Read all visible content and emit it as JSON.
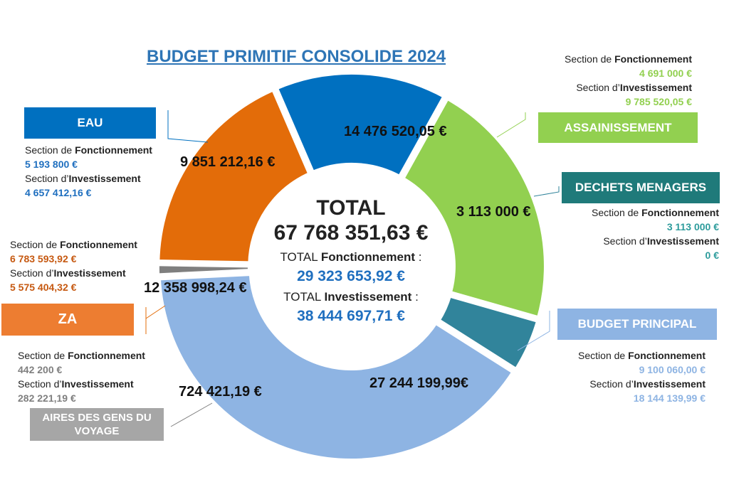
{
  "title": "BUDGET PRIMITIF CONSOLIDE 2024",
  "center": {
    "total_label": "TOTAL",
    "total_value": "67 768 351,63 €",
    "fonct_prefix": "TOTAL",
    "fonct_word": "Fonctionnement",
    "fonct_suffix": ":",
    "fonct_value": "29 323 653,92 €",
    "invest_prefix": "TOTAL",
    "invest_word": "Investissement",
    "invest_suffix": ":",
    "invest_value": "38 444 697,71 €"
  },
  "labels": {
    "fonct_pre": "Section de",
    "fonct_word": "Fonctionnement",
    "invest_pre": "Section d’",
    "invest_word": "Investissement"
  },
  "boxes": {
    "eau": "EAU",
    "assainissement": "ASSAINISSEMENT",
    "dechets": "DECHETS MENAGERS",
    "budget_principal": "BUDGET PRINCIPAL",
    "za": "ZA",
    "aires": "AIRES DES GENS DU VOYAGE"
  },
  "details": {
    "assainissement": {
      "fonct": "4 691 000 €",
      "invest": "9 785 520,05 €"
    },
    "eau": {
      "fonct": "5 193 800 €",
      "invest": "4 657 412,16 €"
    },
    "dechets": {
      "fonct": "3 113 000 €",
      "invest": "0 €"
    },
    "za": {
      "fonct": "6 783 593,92 €",
      "invest": "5 575 404,32 €"
    },
    "budget_principal": {
      "fonct": "9 100 060,00 €",
      "invest": "18 144 139,99 €"
    },
    "aires": {
      "fonct": "442 200 €",
      "invest": "282 221,19 €"
    }
  },
  "colors": {
    "title": "#2E75B6",
    "eau": "#0070C0",
    "assainissement": "#92D050",
    "dechets": "#31849B",
    "budget_principal": "#8EB4E3",
    "aires": "#7F7F7F",
    "za": "#E36C09",
    "za_box": "#ED7D31",
    "aires_box": "#A6A6A6",
    "dechets_box": "#1F7A7A",
    "accent_blue": "#1F6FBF",
    "green_text": "#92D050",
    "teal_text": "#2E9C9C",
    "orange_text": "#C65911",
    "light_blue_text": "#8EB4E3",
    "gray_text": "#7F7F7F"
  },
  "chart_data": {
    "type": "pie",
    "title": "BUDGET PRIMITIF CONSOLIDE 2024",
    "categories": [
      "ASSAINISSEMENT",
      "DECHETS MENAGERS",
      "BUDGET PRINCIPAL",
      "AIRES DES GENS DU VOYAGE",
      "ZA",
      "EAU"
    ],
    "values": [
      14476520.05,
      3113000,
      27244199.99,
      724421.19,
      12358998.24,
      9851212.16
    ],
    "value_labels": [
      "14 476 520,05 €",
      "3 113 000 €",
      "27 244 199,99€",
      "724 421,19 €",
      "12 358 998,24 €",
      "9 851 212,16 €"
    ],
    "total": 67768351.63
  }
}
